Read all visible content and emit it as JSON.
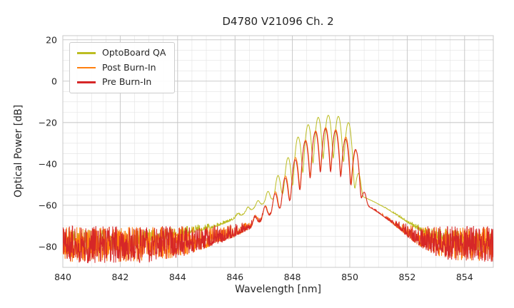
{
  "figure": {
    "title": "D4780 V21096 Ch. 2"
  },
  "chart_data": {
    "type": "line",
    "title": "D4780 V21096 Ch. 2",
    "xlabel": "Wavelength [nm]",
    "ylabel": "Optical Power [dB]",
    "xlim": [
      840,
      855
    ],
    "ylim": [
      -90,
      22
    ],
    "x_ticks": [
      840,
      842,
      844,
      846,
      848,
      850,
      852,
      854
    ],
    "x_tick_labels": [
      "840",
      "842",
      "844",
      "846",
      "848",
      "850",
      "852",
      "854"
    ],
    "y_ticks": [
      20,
      0,
      -20,
      -40,
      -60,
      -80
    ],
    "y_tick_labels": [
      "20",
      "0",
      "−20",
      "−40",
      "−60",
      "−80"
    ],
    "x_minor_step": 0.5,
    "y_minor_step": 5,
    "grid": {
      "major": true,
      "minor": true,
      "major_color": "#c4c4c4",
      "minor_color": "#e2e2e2",
      "frame_color": "#c9c9c9"
    },
    "legend": {
      "position": "upper left",
      "entries": [
        "OptoBoard QA",
        "Post Burn-In",
        "Pre Burn-In"
      ]
    },
    "sample_step_nm": 0.01,
    "series": [
      {
        "name": "OptoBoard QA",
        "color": "#bcbd22",
        "mode_width": 0.075,
        "noise": {
          "seed": 7,
          "top_db": -72,
          "depth_db": 12
        },
        "pedestals": [
          {
            "center": 849.0,
            "width": 1.5,
            "peak_db": -52
          },
          {
            "center": 848.0,
            "width": 3.0,
            "peak_db": -68
          }
        ],
        "modes": [
          [
            846.1,
            -69
          ],
          [
            846.45,
            -65
          ],
          [
            846.8,
            -61
          ],
          [
            847.15,
            -55
          ],
          [
            847.5,
            -46
          ],
          [
            847.85,
            -37
          ],
          [
            848.2,
            -27
          ],
          [
            848.55,
            -21
          ],
          [
            848.9,
            -17.5
          ],
          [
            849.25,
            -16.5
          ],
          [
            849.6,
            -17
          ],
          [
            849.95,
            -20
          ],
          [
            850.3,
            -45
          ]
        ]
      },
      {
        "name": "Post Burn-In",
        "color": "#ff7f0e",
        "mode_width": 0.075,
        "noise": {
          "seed": 5,
          "top_db": -70.5,
          "depth_db": 17
        },
        "pedestals": [
          {
            "center": 849.2,
            "width": 1.25,
            "peak_db": -55
          },
          {
            "center": 848.6,
            "width": 2.2,
            "peak_db": -70
          }
        ],
        "modes": [
          [
            846.71,
            -67.5
          ],
          [
            847.06,
            -61.5
          ],
          [
            847.41,
            -54
          ],
          [
            847.76,
            -46
          ],
          [
            848.11,
            -37
          ],
          [
            848.46,
            -28.5
          ],
          [
            848.81,
            -24
          ],
          [
            849.16,
            -22.4
          ],
          [
            849.51,
            -23.4
          ],
          [
            849.86,
            -27
          ],
          [
            850.21,
            -33.5
          ],
          [
            850.5,
            -55
          ]
        ]
      },
      {
        "name": "Pre Burn-In",
        "color": "#d62728",
        "mode_width": 0.075,
        "noise": {
          "seed": 3,
          "top_db": -70,
          "depth_db": 18
        },
        "pedestals": [
          {
            "center": 849.2,
            "width": 1.25,
            "peak_db": -55
          },
          {
            "center": 848.6,
            "width": 2.2,
            "peak_db": -70
          }
        ],
        "modes": [
          [
            846.7,
            -68
          ],
          [
            847.05,
            -62
          ],
          [
            847.4,
            -55
          ],
          [
            847.75,
            -47
          ],
          [
            848.1,
            -38
          ],
          [
            848.45,
            -29
          ],
          [
            848.8,
            -24.5
          ],
          [
            849.15,
            -23
          ],
          [
            849.5,
            -24
          ],
          [
            849.85,
            -28
          ],
          [
            850.2,
            -33
          ],
          [
            850.5,
            -55
          ]
        ]
      }
    ]
  }
}
